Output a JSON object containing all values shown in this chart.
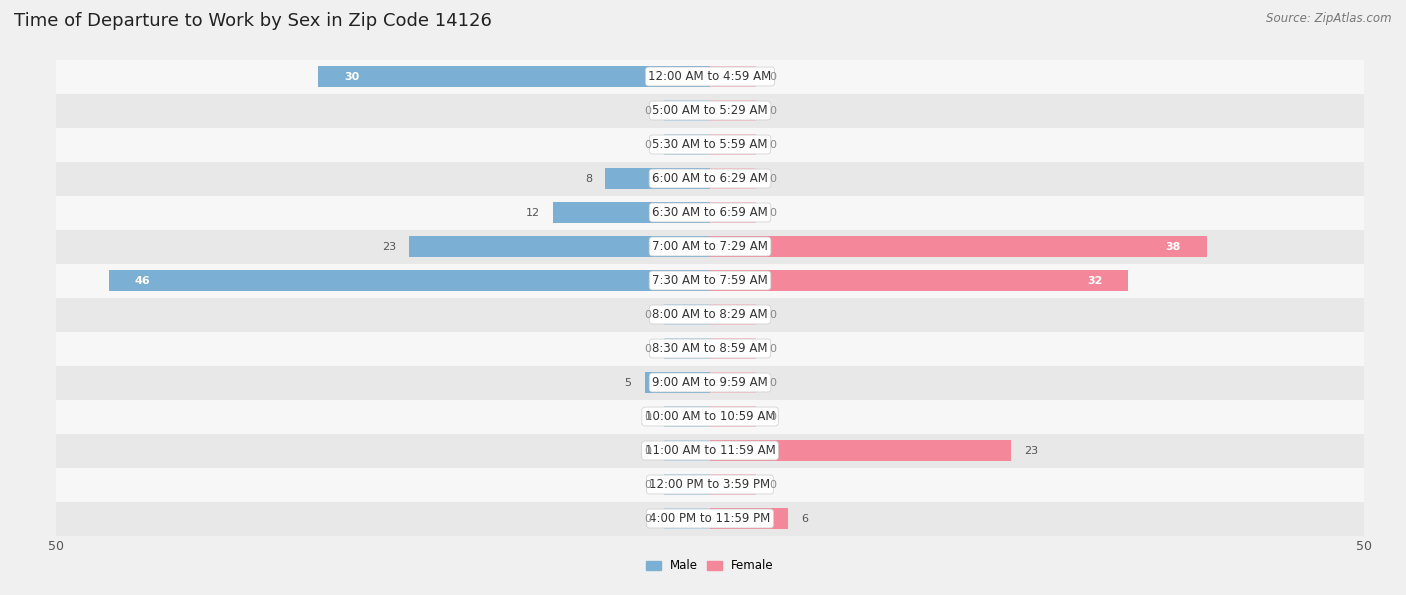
{
  "title": "Time of Departure to Work by Sex in Zip Code 14126",
  "source": "Source: ZipAtlas.com",
  "categories": [
    "12:00 AM to 4:59 AM",
    "5:00 AM to 5:29 AM",
    "5:30 AM to 5:59 AM",
    "6:00 AM to 6:29 AM",
    "6:30 AM to 6:59 AM",
    "7:00 AM to 7:29 AM",
    "7:30 AM to 7:59 AM",
    "8:00 AM to 8:29 AM",
    "8:30 AM to 8:59 AM",
    "9:00 AM to 9:59 AM",
    "10:00 AM to 10:59 AM",
    "11:00 AM to 11:59 AM",
    "12:00 PM to 3:59 PM",
    "4:00 PM to 11:59 PM"
  ],
  "male_values": [
    30,
    0,
    0,
    8,
    12,
    23,
    46,
    0,
    0,
    5,
    0,
    0,
    0,
    0
  ],
  "female_values": [
    0,
    0,
    0,
    0,
    0,
    38,
    32,
    0,
    0,
    0,
    0,
    23,
    0,
    6
  ],
  "male_color": "#7bafd4",
  "female_color": "#f4889a",
  "male_color_light": "#b8d4e8",
  "female_color_light": "#f8c0cb",
  "male_label": "Male",
  "female_label": "Female",
  "axis_limit": 50,
  "bg_color": "#f0f0f0",
  "row_light": "#f7f7f7",
  "row_dark": "#e8e8e8",
  "title_fontsize": 13,
  "label_fontsize": 8.5,
  "tick_fontsize": 9,
  "source_fontsize": 8.5,
  "val_label_fontsize": 8
}
